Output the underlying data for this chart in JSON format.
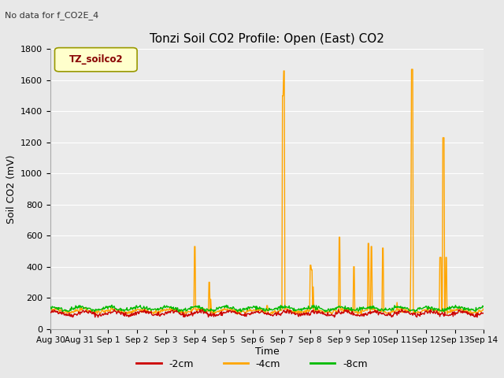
{
  "title": "Tonzi Soil CO2 Profile: Open (East) CO2",
  "no_data_text": "No data for f_CO2E_4",
  "ylabel": "Soil CO2 (mV)",
  "xlabel": "Time",
  "legend_title": "TZ_soilco2",
  "ylim": [
    0,
    1800
  ],
  "series": {
    "neg2cm": {
      "label": "-2cm",
      "color": "#cc0000",
      "linewidth": 1.0
    },
    "neg4cm": {
      "label": "-4cm",
      "color": "#ffa500",
      "linewidth": 1.0
    },
    "neg8cm": {
      "label": "-8cm",
      "color": "#00bb00",
      "linewidth": 1.0
    }
  },
  "fig_bg_color": "#e8e8e8",
  "plot_bg_color": "#ebebeb",
  "grid_color": "#ffffff",
  "xticklabels": [
    "Aug 30",
    "Aug 31",
    "Sep 1",
    "Sep 2",
    "Sep 3",
    "Sep 4",
    "Sep 5",
    "Sep 6",
    "Sep 7",
    "Sep 8",
    "Sep 9",
    "Sep 10",
    "Sep 11",
    "Sep 12",
    "Sep 13",
    "Sep 14"
  ],
  "yticks": [
    0,
    200,
    400,
    600,
    800,
    1000,
    1200,
    1400,
    1600,
    1800
  ],
  "num_days": 15
}
